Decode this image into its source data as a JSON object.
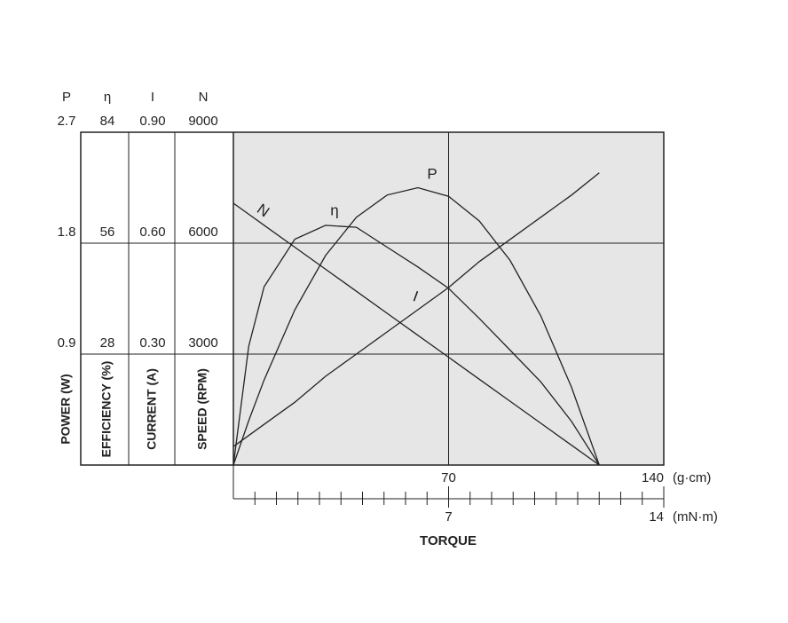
{
  "chart_data": {
    "type": "line",
    "x": [
      0,
      5,
      10,
      20,
      30,
      40,
      50,
      60,
      70,
      80,
      90,
      100,
      110,
      119
    ],
    "xlim": [
      0,
      140
    ],
    "xticks": [
      70,
      140
    ],
    "xminor": [
      7,
      14,
      21,
      28,
      35,
      42,
      49,
      56,
      63,
      77,
      84,
      91,
      98,
      105,
      112,
      119,
      126,
      133
    ],
    "xunit": "(g·cm)",
    "x2lim": [
      0,
      14
    ],
    "x2ticks": [
      7,
      14
    ],
    "x2unit": "(mN·m)",
    "xlabel": "TORQUE",
    "color": "#222222",
    "grid": true,
    "axes": [
      {
        "symbol": "P",
        "label": "POWER (W)",
        "ylim": [
          0,
          2.7
        ],
        "yticks": [
          0.9,
          1.8,
          2.7
        ],
        "series": {
          "name": "P",
          "values": [
            0,
            0.36,
            0.69,
            1.26,
            1.7,
            2.01,
            2.19,
            2.25,
            2.18,
            1.98,
            1.66,
            1.21,
            0.63,
            0
          ]
        }
      },
      {
        "symbol": "η",
        "label": "EFFICIENCY (%)",
        "ylim": [
          0,
          84
        ],
        "yticks": [
          28,
          56,
          84
        ],
        "series": {
          "name": "η",
          "values": [
            0,
            30,
            45,
            57,
            60.5,
            60,
            55,
            50,
            44.6,
            37,
            29,
            21,
            11,
            0
          ]
        }
      },
      {
        "symbol": "I",
        "label": "CURRENT (A)",
        "ylim": [
          0,
          0.9
        ],
        "yticks": [
          {
            "value": 0.3,
            "label": "0.30"
          },
          {
            "value": 0.6,
            "label": "0.60"
          },
          {
            "value": 0.9,
            "label": "0.90"
          }
        ],
        "series": {
          "name": "I",
          "values": [
            0.05,
            0.08,
            0.11,
            0.17,
            0.24,
            0.3,
            0.36,
            0.42,
            0.48,
            0.55,
            0.61,
            0.67,
            0.73,
            0.79
          ]
        }
      },
      {
        "symbol": "N",
        "label": "SPEED (RPM)",
        "ylim": [
          0,
          9000
        ],
        "yticks": [
          3000,
          6000,
          9000
        ],
        "series": {
          "name": "N",
          "values": [
            7080,
            6783,
            6485,
            5890,
            5295,
            4700,
            4105,
            3510,
            2915,
            2320,
            1725,
            1130,
            535,
            0
          ]
        }
      }
    ]
  }
}
